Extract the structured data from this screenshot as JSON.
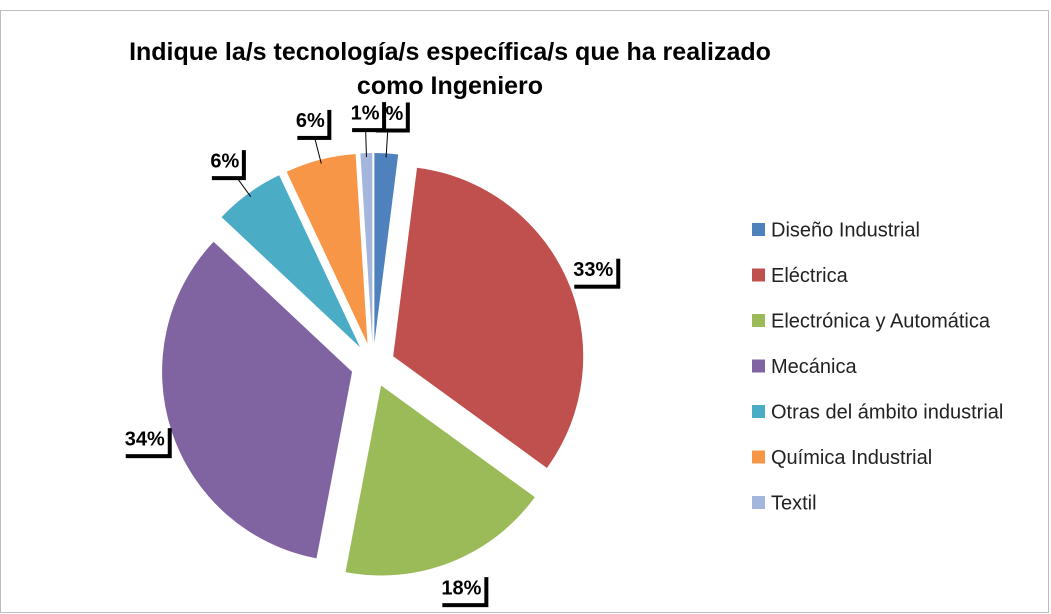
{
  "chart_data": {
    "type": "pie",
    "title": "Indique la/s tecnología/s específica/s que ha realizado como Ingeniero",
    "categories": [
      "Diseño Industrial",
      "Eléctrica",
      "Electrónica y Automática",
      "Mecánica",
      "Otras del ámbito industrial",
      "Química Industrial",
      "Textil"
    ],
    "values": [
      2,
      33,
      18,
      34,
      6,
      6,
      1
    ],
    "value_labels": [
      "2%",
      "33%",
      "18%",
      "34%",
      "6%",
      "6%",
      "1%"
    ],
    "colors": [
      "#4f81bd",
      "#c0504d",
      "#9bbb59",
      "#8064a2",
      "#4bacc6",
      "#f79646",
      "#a5b6dc"
    ],
    "legend": "right"
  }
}
